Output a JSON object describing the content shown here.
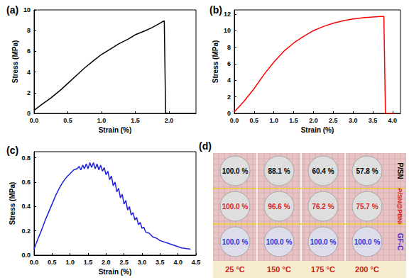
{
  "chart_data": [
    {
      "type": "line",
      "title": "(a)",
      "x_label": "Strain (%)",
      "y_label": "Stress (MPa)",
      "color": "#000000",
      "grid": false,
      "xlim": [
        0,
        2.4
      ],
      "ylim": [
        0,
        10
      ],
      "xticks": [
        {
          "value": 0,
          "label": "0.0"
        },
        0.5,
        {
          "value": 1,
          "label": "1.0"
        },
        1.5,
        {
          "value": 2,
          "label": "2.0"
        }
      ],
      "yticks": [
        0,
        2,
        4,
        6,
        8,
        10
      ],
      "x": [
        0,
        0.1,
        0.25,
        0.4,
        0.5,
        0.65,
        0.75,
        0.9,
        1.0,
        1.15,
        1.25,
        1.4,
        1.5,
        1.65,
        1.75,
        1.85,
        1.9,
        1.93,
        1.95,
        2.0,
        2.2,
        2.4
      ],
      "values": [
        0.3,
        0.8,
        1.5,
        2.3,
        2.9,
        3.8,
        4.4,
        5.2,
        5.7,
        6.3,
        6.7,
        7.2,
        7.6,
        8.0,
        8.3,
        8.65,
        8.85,
        8.95,
        0.05,
        0,
        0,
        0
      ]
    },
    {
      "type": "line",
      "title": "(b)",
      "x_label": "Strain (%)",
      "y_label": "Stress (MPa)",
      "color": "#ff0000",
      "grid": false,
      "xlim": [
        0,
        4.2
      ],
      "ylim": [
        0,
        12.5
      ],
      "xticks": [
        {
          "value": 0,
          "label": "0.0"
        },
        0.5,
        {
          "value": 1,
          "label": "1.0"
        },
        1.5,
        {
          "value": 2,
          "label": "2.0"
        },
        2.5,
        {
          "value": 3,
          "label": "3.0"
        },
        3.5,
        {
          "value": 4,
          "label": "4.0"
        }
      ],
      "yticks": [
        0,
        2,
        4,
        6,
        8,
        10,
        12
      ],
      "x": [
        0,
        0.1,
        0.25,
        0.5,
        0.75,
        1.0,
        1.25,
        1.5,
        1.75,
        2.0,
        2.25,
        2.5,
        2.75,
        3.0,
        3.25,
        3.5,
        3.7,
        3.78,
        3.82,
        4.0,
        4.05
      ],
      "values": [
        0.2,
        0.7,
        1.5,
        3.0,
        4.7,
        6.2,
        7.5,
        8.5,
        9.3,
        10.0,
        10.5,
        10.9,
        11.2,
        11.4,
        11.55,
        11.65,
        11.7,
        11.7,
        0,
        0,
        0
      ]
    },
    {
      "type": "line",
      "title": "(c)",
      "x_label": "Strain (%)",
      "y_label": "Stress (MPa)",
      "color": "#1f1fdd",
      "grid": false,
      "xlim": [
        0,
        4.5
      ],
      "ylim": [
        0,
        0.85
      ],
      "xticks": [
        {
          "value": 0,
          "label": "0.0"
        },
        0.5,
        {
          "value": 1,
          "label": "1.0"
        },
        1.5,
        {
          "value": 2,
          "label": "2.0"
        },
        2.5,
        {
          "value": 3,
          "label": "3.0"
        },
        3.5,
        {
          "value": 4,
          "label": "4.0"
        },
        4.5
      ],
      "yticks": [
        {
          "value": 0,
          "label": "0.0"
        },
        0.2,
        0.4,
        0.6,
        0.8
      ],
      "x": [
        0,
        0.1,
        0.2,
        0.3,
        0.4,
        0.5,
        0.6,
        0.7,
        0.8,
        0.9,
        1.0,
        1.1,
        1.2,
        1.25,
        1.3,
        1.35,
        1.4,
        1.45,
        1.5,
        1.55,
        1.6,
        1.65,
        1.7,
        1.75,
        1.8,
        1.85,
        1.9,
        1.95,
        2.0,
        2.05,
        2.1,
        2.15,
        2.2,
        2.25,
        2.3,
        2.35,
        2.4,
        2.45,
        2.5,
        2.55,
        2.6,
        2.65,
        2.7,
        2.75,
        2.8,
        2.85,
        2.9,
        2.95,
        3.0,
        3.05,
        3.1,
        3.2,
        3.3,
        3.4,
        3.5,
        3.7,
        3.9,
        4.1,
        4.35
      ],
      "values": [
        0.05,
        0.13,
        0.2,
        0.28,
        0.35,
        0.42,
        0.49,
        0.55,
        0.6,
        0.64,
        0.67,
        0.7,
        0.71,
        0.73,
        0.7,
        0.74,
        0.71,
        0.75,
        0.71,
        0.76,
        0.72,
        0.76,
        0.71,
        0.75,
        0.7,
        0.74,
        0.69,
        0.72,
        0.66,
        0.69,
        0.62,
        0.65,
        0.57,
        0.6,
        0.52,
        0.55,
        0.47,
        0.5,
        0.42,
        0.45,
        0.37,
        0.4,
        0.33,
        0.35,
        0.29,
        0.31,
        0.25,
        0.27,
        0.22,
        0.23,
        0.19,
        0.18,
        0.15,
        0.14,
        0.12,
        0.1,
        0.08,
        0.06,
        0.05
      ]
    }
  ],
  "panel_d": {
    "title": "(d)",
    "columns": [
      "25 °C",
      "150 °C",
      "175 °C",
      "200 °C"
    ],
    "rows": [
      {
        "label": "P/SN",
        "color": "#000000",
        "values": [
          "100.0 %",
          "88.1 %",
          "60.4 %",
          "57.8 %"
        ]
      },
      {
        "label": "P/SN@PBNI",
        "color": "#d81e1e",
        "values": [
          "100.0 %",
          "96.6 %",
          "76.2 %",
          "75.7 %"
        ]
      },
      {
        "label": "GF-C",
        "color": "#3a2bd6",
        "values": [
          "100.0 %",
          "100.0 %",
          "100.0 %",
          "100.0 %"
        ]
      }
    ]
  }
}
